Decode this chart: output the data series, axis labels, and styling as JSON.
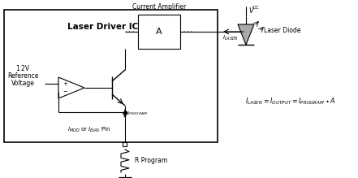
{
  "bg_color": "#ffffff",
  "fig_w": 4.41,
  "fig_h": 2.19,
  "dpi": 100,
  "main_title": "Laser Driver IC",
  "ref_lines": [
    "1.2V",
    "Reference",
    "Voltage"
  ],
  "current_amp_label": "Current Amplifier",
  "amp_letter": "A",
  "laser_diode_label": "Laser Diode",
  "vcc_text": "V",
  "vcc_sub": "CC",
  "ilaser_label": "I",
  "ilaser_sub": "LASER",
  "iprogram_label": "I",
  "iprogram_sub": "PROGRAM",
  "imod_text": "I",
  "imod_sub": "MOD",
  "ibias_text": "I",
  "ibias_sub": "BIAS",
  "pin_text": " or ",
  "pin_suffix": " Pin",
  "r_program": "R Program",
  "eq_full": "I_{LASER} = I_{OUTPUT} = I_{PROGRAM} \\bullet A"
}
